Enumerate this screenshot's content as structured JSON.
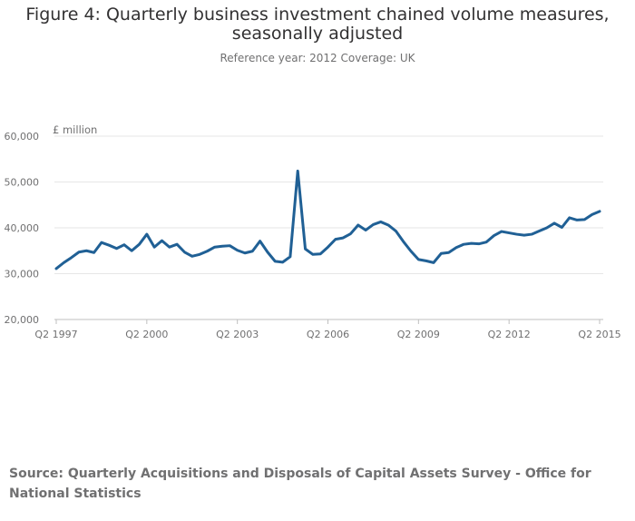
{
  "page": {
    "title": "Figure 4: Quarterly business investment chained volume measures, seasonally adjusted",
    "subtitle": "Reference year: 2012 Coverage: UK",
    "source": "Source: Quarterly Acquisitions and Disposals of Capital Assets Survey - Office for National Statistics"
  },
  "chart_data": {
    "type": "line",
    "title": "Figure 4: Quarterly business investment chained volume measures, seasonally adjusted",
    "subtitle": "Reference year: 2012 Coverage: UK",
    "ylabel": "£ million",
    "ylim": [
      20000,
      60000
    ],
    "yticks": [
      20000,
      30000,
      40000,
      50000,
      60000
    ],
    "ytick_labels": [
      "20,000",
      "30,000",
      "40,000",
      "50,000",
      "60,000"
    ],
    "xtick_labels": [
      "Q2 1997",
      "Q2 2000",
      "Q2 2003",
      "Q2 2006",
      "Q2 2009",
      "Q2 2012",
      "Q2 2015"
    ],
    "xtick_index": [
      0,
      12,
      24,
      36,
      48,
      60,
      72
    ],
    "grid": true,
    "legend": "none",
    "line_color": "#206095",
    "x": [
      "Q2 1997",
      "Q3 1997",
      "Q4 1997",
      "Q1 1998",
      "Q2 1998",
      "Q3 1998",
      "Q4 1998",
      "Q1 1999",
      "Q2 1999",
      "Q3 1999",
      "Q4 1999",
      "Q1 2000",
      "Q2 2000",
      "Q3 2000",
      "Q4 2000",
      "Q1 2001",
      "Q2 2001",
      "Q3 2001",
      "Q4 2001",
      "Q1 2002",
      "Q2 2002",
      "Q3 2002",
      "Q4 2002",
      "Q1 2003",
      "Q2 2003",
      "Q3 2003",
      "Q4 2003",
      "Q1 2004",
      "Q2 2004",
      "Q3 2004",
      "Q4 2004",
      "Q1 2005",
      "Q2 2005",
      "Q3 2005",
      "Q4 2005",
      "Q1 2006",
      "Q2 2006",
      "Q3 2006",
      "Q4 2006",
      "Q1 2007",
      "Q2 2007",
      "Q3 2007",
      "Q4 2007",
      "Q1 2008",
      "Q2 2008",
      "Q3 2008",
      "Q4 2008",
      "Q1 2009",
      "Q2 2009",
      "Q3 2009",
      "Q4 2009",
      "Q1 2010",
      "Q2 2010",
      "Q3 2010",
      "Q4 2010",
      "Q1 2011",
      "Q2 2011",
      "Q3 2011",
      "Q4 2011",
      "Q1 2012",
      "Q2 2012",
      "Q3 2012",
      "Q4 2012",
      "Q1 2013",
      "Q2 2013",
      "Q3 2013",
      "Q4 2013",
      "Q1 2014",
      "Q2 2014",
      "Q3 2014",
      "Q4 2014",
      "Q1 2015",
      "Q2 2015"
    ],
    "series": [
      {
        "values": [
          31100,
          32400,
          33500,
          34700,
          35000,
          34600,
          36800,
          36200,
          35500,
          36300,
          35000,
          36400,
          38600,
          35800,
          37200,
          35800,
          36400,
          34700,
          33800,
          34200,
          34900,
          35800,
          36000,
          36100,
          35100,
          34500,
          34900,
          37100,
          34700,
          32700,
          32500,
          33700,
          52400,
          35400,
          34200,
          34300,
          35800,
          37500,
          37800,
          38700,
          40600,
          39500,
          40700,
          41300,
          40600,
          39300,
          37000,
          34900,
          33100,
          32800,
          32400,
          34400,
          34600,
          35700,
          36400,
          36600,
          36500,
          36900,
          38300,
          39200,
          38900,
          38600,
          38400,
          38600,
          39300,
          40000,
          41000,
          40100,
          42200,
          41700,
          41800,
          42900,
          43600
        ]
      }
    ]
  }
}
